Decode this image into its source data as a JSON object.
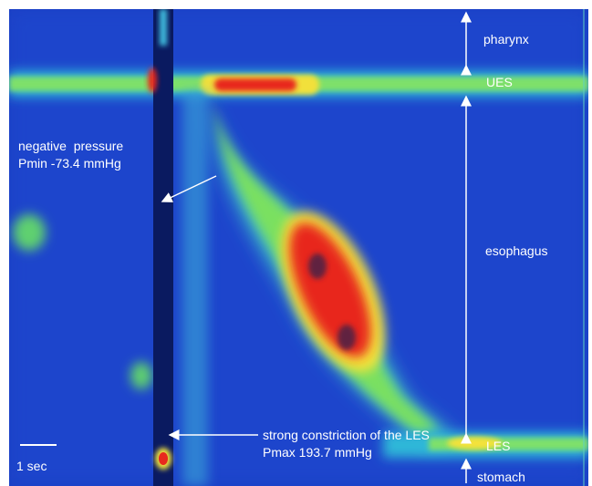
{
  "regions": [
    "pharynx",
    "UES",
    "esophagus",
    "LES",
    "stomach"
  ],
  "notes": {
    "negative_pressure": [
      "negative  pressure",
      "Pmin -73.4 mmHg"
    ],
    "constriction": [
      "strong constriction of the LES",
      "Pmax 193.7 mmHg"
    ]
  },
  "scale_bar": "1 sec"
}
